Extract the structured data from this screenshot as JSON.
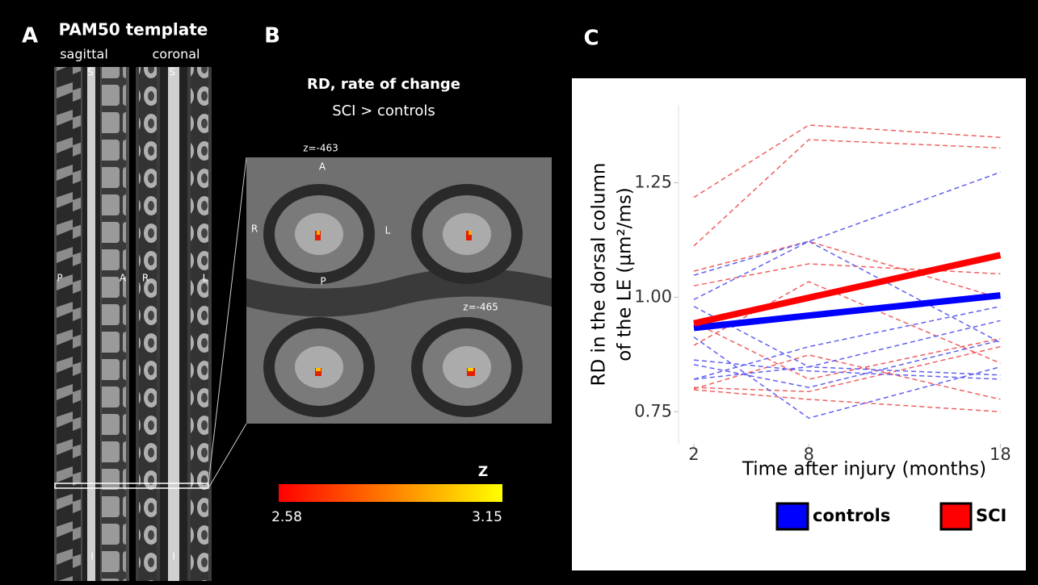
{
  "panels": {
    "A": {
      "label": "A",
      "title": "PAM50 template",
      "views": [
        "sagittal",
        "coronal"
      ],
      "sagittal_labels": [
        "S",
        "P",
        "A",
        "I"
      ],
      "coronal_labels": [
        "S",
        "R",
        "L",
        "I"
      ]
    },
    "B": {
      "label": "B",
      "title": "RD, rate of change",
      "subtitle": "SCI > controls",
      "slices": [
        "z=-463",
        "z=-465"
      ],
      "orientation_labels": [
        "A",
        "R",
        "L",
        "P"
      ],
      "colorbar": {
        "label": "Z",
        "min": 2.58,
        "max": 3.15,
        "colors": [
          "#ff0000",
          "#ffff00"
        ]
      }
    },
    "C": {
      "label": "C"
    }
  },
  "chart_data": {
    "type": "line",
    "xlabel": "Time after injury (months)",
    "ylabel": [
      "RD in the dorsal column",
      "of the LE (µm²/ms)"
    ],
    "x": [
      2,
      8,
      18
    ],
    "xlim": [
      1.2,
      18.7
    ],
    "ylim": [
      0.68,
      1.42
    ],
    "xticks": [
      2,
      8,
      18
    ],
    "yticks": [
      0.75,
      {
        "value": 1,
        "label": "1.00"
      },
      1.25
    ],
    "series": [
      {
        "name": "controls",
        "color": "#0000ff",
        "values": [
          0.933,
          0.96,
          1.004
        ]
      },
      {
        "name": "SCI",
        "color": "#ff0000",
        "values": [
          0.943,
          0.999,
          1.092
        ]
      }
    ],
    "individual_lines": [
      {
        "color": "#f06060",
        "values": [
          1.218,
          1.376,
          1.349
        ]
      },
      {
        "color": "#f06060",
        "values": [
          1.112,
          1.344,
          1.326
        ]
      },
      {
        "color": "#f06060",
        "values": [
          1.057,
          1.122,
          0.998
        ]
      },
      {
        "color": "#f06060",
        "values": [
          1.025,
          1.073,
          1.051
        ]
      },
      {
        "color": "#f06060",
        "values": [
          0.895,
          1.034,
          0.856
        ]
      },
      {
        "color": "#f06060",
        "values": [
          0.803,
          0.794,
          0.892
        ]
      },
      {
        "color": "#f06060",
        "values": [
          0.8,
          0.874,
          0.777
        ]
      },
      {
        "color": "#f06060",
        "values": [
          0.798,
          0.777,
          0.75
        ]
      },
      {
        "color": "#f06060",
        "values": [
          0.945,
          0.821,
          0.91
        ]
      },
      {
        "color": "#6060f0",
        "values": [
          1.048,
          1.122,
          1.273
        ]
      },
      {
        "color": "#6060f0",
        "values": [
          0.995,
          1.122,
          0.901
        ]
      },
      {
        "color": "#6060f0",
        "values": [
          0.98,
          0.848,
          0.949
        ]
      },
      {
        "color": "#6060f0",
        "values": [
          0.913,
          0.736,
          0.848
        ]
      },
      {
        "color": "#6060f0",
        "values": [
          0.863,
          0.839,
          0.821
        ]
      },
      {
        "color": "#6060f0",
        "values": [
          0.853,
          0.803,
          0.906
        ]
      },
      {
        "color": "#6060f0",
        "values": [
          0.821,
          0.848,
          0.83
        ]
      },
      {
        "color": "#6060f0",
        "values": [
          0.821,
          0.892,
          0.98
        ]
      }
    ]
  }
}
